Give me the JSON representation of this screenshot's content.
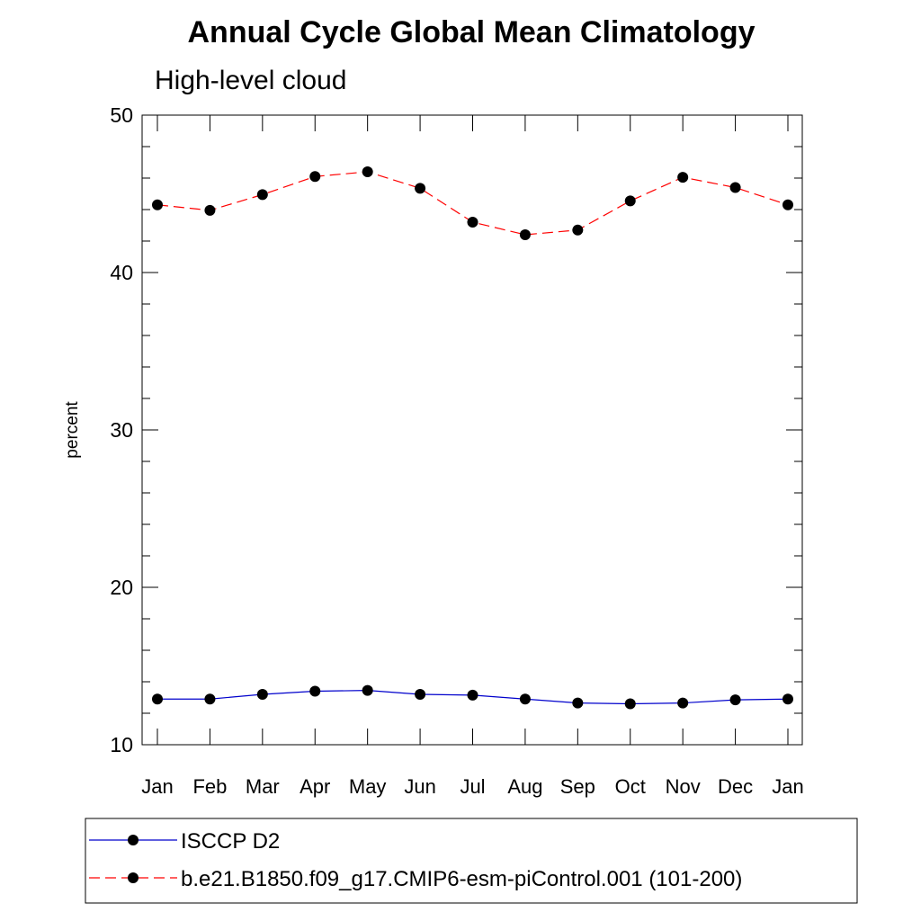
{
  "chart_data": {
    "type": "line",
    "title": "Annual Cycle Global Mean Climatology",
    "subtitle": "High-level cloud",
    "xlabel": "",
    "ylabel": "percent",
    "categories": [
      "Jan",
      "Feb",
      "Mar",
      "Apr",
      "May",
      "Jun",
      "Jul",
      "Aug",
      "Sep",
      "Oct",
      "Nov",
      "Dec",
      "Jan"
    ],
    "ylim": [
      10,
      50
    ],
    "yticks": [
      "10",
      "20",
      "30",
      "40",
      "50"
    ],
    "grid": false,
    "legend_position": "bottom",
    "series": [
      {
        "name": "ISCCP D2",
        "color": "#0000cc",
        "line_style": "solid",
        "marker": "filled-circle",
        "values": [
          12.9,
          12.9,
          13.2,
          13.4,
          13.45,
          13.2,
          13.15,
          12.9,
          12.65,
          12.6,
          12.65,
          12.85,
          12.9
        ]
      },
      {
        "name": "b.e21.B1850.f09_g17.CMIP6-esm-piControl.001 (101-200)",
        "color": "#ff0000",
        "line_style": "dashed",
        "marker": "filled-circle",
        "values": [
          44.3,
          43.95,
          44.95,
          46.1,
          46.4,
          45.35,
          43.2,
          42.4,
          42.7,
          44.55,
          46.05,
          45.4,
          44.3
        ]
      }
    ]
  }
}
